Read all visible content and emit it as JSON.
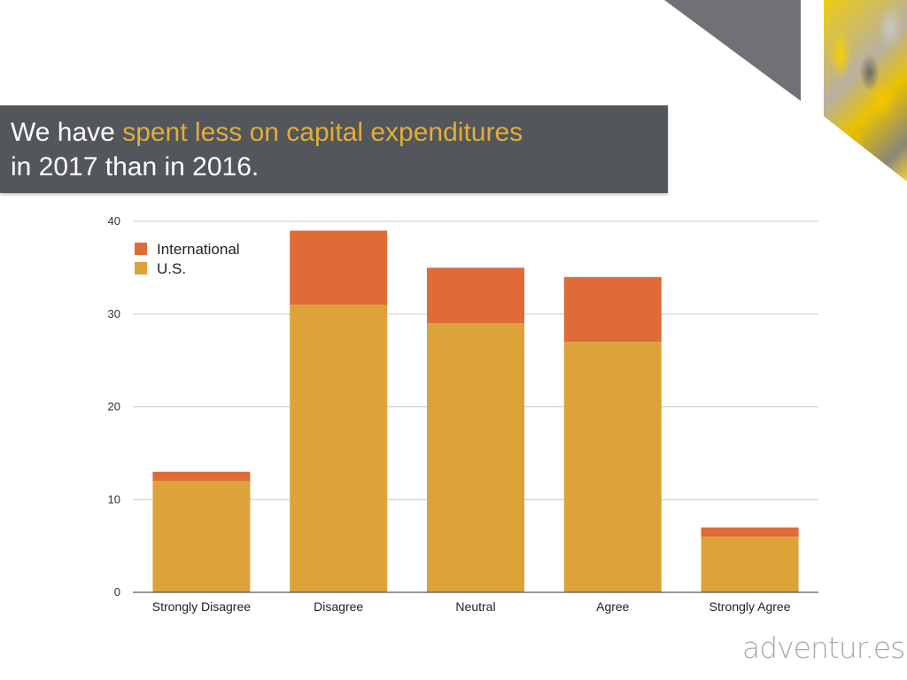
{
  "slide": {
    "title_line1_prefix": "We have ",
    "title_line1_highlight": "spent less on capital expenditures",
    "title_line2": "in 2017 than in 2016.",
    "brand_prefix": "adventur",
    "brand_dot": ".",
    "brand_suffix": "es"
  },
  "colors": {
    "banner": "#53565a",
    "highlight": "#e2ad3b",
    "us": "#dca33a",
    "international": "#de6b38",
    "grid": "#c8c8c8"
  },
  "chart_data": {
    "type": "bar",
    "stacked": true,
    "title": "",
    "xlabel": "",
    "ylabel": "",
    "categories": [
      "Strongly Disagree",
      "Disagree",
      "Neutral",
      "Agree",
      "Strongly Agree"
    ],
    "series": [
      {
        "name": "U.S.",
        "color": "#dca33a",
        "values": [
          12,
          31,
          29,
          27,
          6
        ]
      },
      {
        "name": "International",
        "color": "#de6b38",
        "values": [
          1,
          8,
          6,
          7,
          1
        ]
      }
    ],
    "yticks": [
      0,
      10,
      20,
      30,
      40
    ],
    "ylim": [
      0,
      40
    ],
    "grid": true,
    "legend": {
      "position": "top-left",
      "order": [
        "International",
        "U.S."
      ]
    }
  }
}
